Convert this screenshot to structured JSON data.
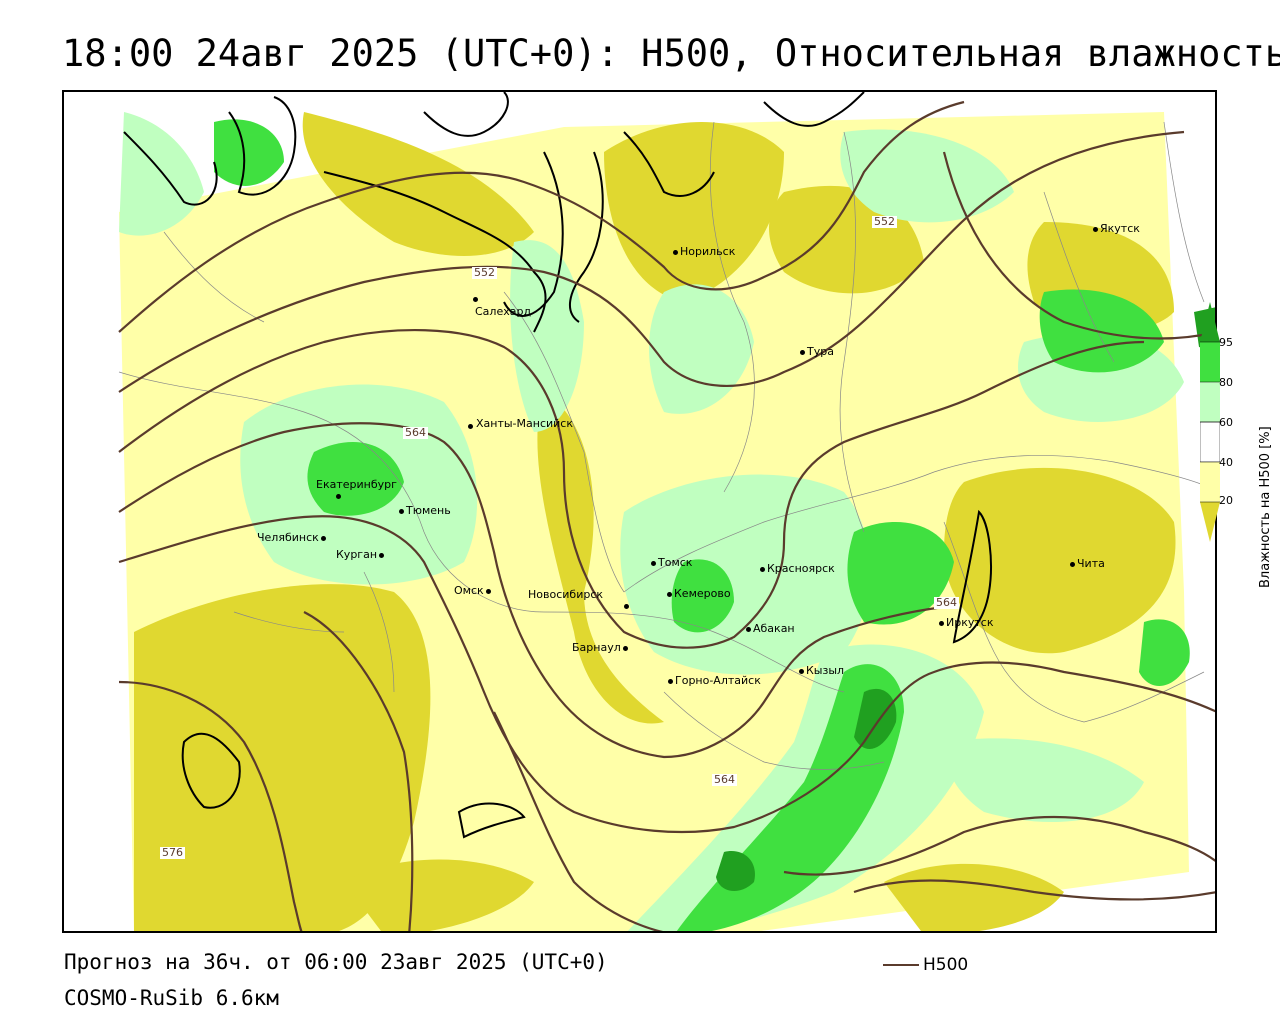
{
  "title": "18:00 24авг 2025 (UTC+0): H500, Относительная влажность",
  "footer": {
    "forecast": "Прогноз на 36ч. от 06:00 23авг 2025 (UTC+0)",
    "model": "COSMO-RuSib 6.6км"
  },
  "legend": {
    "h500_label": "H500"
  },
  "colorbar": {
    "title": "Влажность на H500 [%]",
    "ticks": [
      "95",
      "80",
      "60",
      "40",
      "20"
    ],
    "colors": {
      "very_dry": "#e0d830",
      "dry": "#ffffa8",
      "moderate": "#ffffff",
      "moist": "#c0ffc0",
      "wet": "#40e040",
      "saturated": "#20a020"
    }
  },
  "colors": {
    "isohypse": "#5a3b2c",
    "borders": "#888888",
    "coast": "#000000"
  },
  "isohypse_labels": [
    "552",
    "552",
    "564",
    "564",
    "564",
    "576"
  ],
  "cities": [
    "Норильск",
    "Якутск",
    "Салехард",
    "Тура",
    "Ханты-Мансийск",
    "Екатеринбург",
    "Тюмень",
    "Челябинск",
    "Курган",
    "Омск",
    "Новосибирск",
    "Томск",
    "Кемерово",
    "Красноярск",
    "Абакан",
    "Барнаул",
    "Горно-Алтайск",
    "Кызыл",
    "Иркутск",
    "Чита"
  ]
}
